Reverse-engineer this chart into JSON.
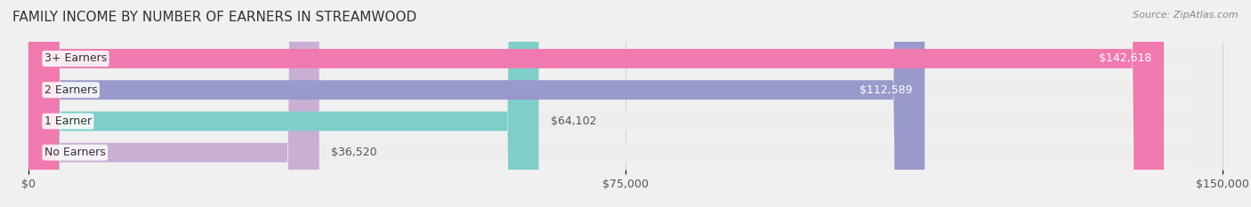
{
  "title": "FAMILY INCOME BY NUMBER OF EARNERS IN STREAMWOOD",
  "source": "Source: ZipAtlas.com",
  "categories": [
    "No Earners",
    "1 Earner",
    "2 Earners",
    "3+ Earners"
  ],
  "values": [
    36520,
    64102,
    112589,
    142618
  ],
  "bar_colors": [
    "#c9afd4",
    "#7ececa",
    "#9999cc",
    "#f07ab0"
  ],
  "bar_edge_colors": [
    "#c9afd4",
    "#7ececa",
    "#9999cc",
    "#f07ab0"
  ],
  "label_colors": [
    "#555555",
    "#555555",
    "#ffffff",
    "#ffffff"
  ],
  "max_value": 150000,
  "x_ticks": [
    0,
    75000,
    150000
  ],
  "x_tick_labels": [
    "$0",
    "$75,000",
    "$150,000"
  ],
  "background_color": "#f0f0f0",
  "bar_bg_color": "#eeeeee",
  "title_fontsize": 11,
  "label_fontsize": 9,
  "tick_fontsize": 9,
  "source_fontsize": 8
}
